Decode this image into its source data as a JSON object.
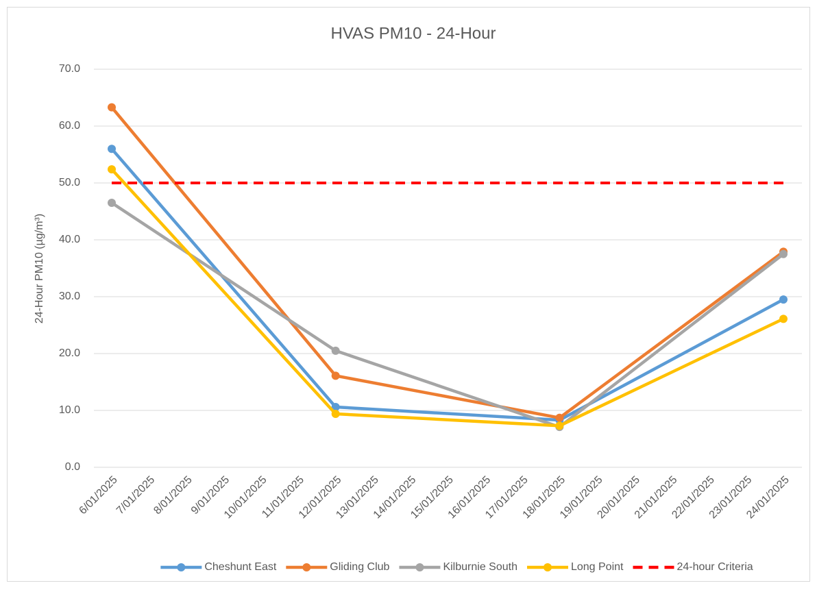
{
  "chart_data": {
    "type": "line",
    "title": "HVAS PM10 - 24-Hour",
    "y_label": "24-Hour PM10 (µg/m³)",
    "x": [
      "6/01/2025",
      "7/01/2025",
      "8/01/2025",
      "9/01/2025",
      "10/01/2025",
      "11/01/2025",
      "12/01/2025",
      "13/01/2025",
      "14/01/2025",
      "15/01/2025",
      "16/01/2025",
      "17/01/2025",
      "18/01/2025",
      "19/01/2025",
      "20/01/2025",
      "21/01/2025",
      "22/01/2025",
      "23/01/2025",
      "24/01/2025"
    ],
    "ylim": [
      0,
      70
    ],
    "yticks": [
      {
        "value": 0,
        "label": "0.0"
      },
      {
        "value": 10,
        "label": "10.0"
      },
      {
        "value": 20,
        "label": "20.0"
      },
      {
        "value": 30,
        "label": "30.0"
      },
      {
        "value": 40,
        "label": "40.0"
      },
      {
        "value": 50,
        "label": "50.0"
      },
      {
        "value": 60,
        "label": "60.0"
      },
      {
        "value": 70,
        "label": "70.0"
      }
    ],
    "grid": true,
    "legend": "bottom",
    "series": [
      {
        "name": "Cheshunt East",
        "color": "#5b9bd5",
        "x": [
          "6/01/2025",
          "12/01/2025",
          "18/01/2025",
          "24/01/2025"
        ],
        "values": [
          56.0,
          10.6,
          8.3,
          29.5
        ]
      },
      {
        "name": "Gliding Club",
        "color": "#ed7d31",
        "x": [
          "6/01/2025",
          "12/01/2025",
          "18/01/2025",
          "24/01/2025"
        ],
        "values": [
          63.3,
          16.1,
          8.7,
          37.9
        ]
      },
      {
        "name": "Kilburnie South",
        "color": "#a5a5a5",
        "x": [
          "6/01/2025",
          "12/01/2025",
          "18/01/2025",
          "24/01/2025"
        ],
        "values": [
          46.5,
          20.5,
          7.1,
          37.5
        ]
      },
      {
        "name": "Long Point",
        "color": "#ffc000",
        "x": [
          "6/01/2025",
          "12/01/2025",
          "18/01/2025",
          "24/01/2025"
        ],
        "values": [
          52.4,
          9.4,
          7.3,
          26.1
        ]
      },
      {
        "name": "24-hour Criteria",
        "color": "#ff0000",
        "dashed": true,
        "x": [
          "6/01/2025",
          "24/01/2025"
        ],
        "values": [
          50,
          50
        ]
      }
    ]
  }
}
